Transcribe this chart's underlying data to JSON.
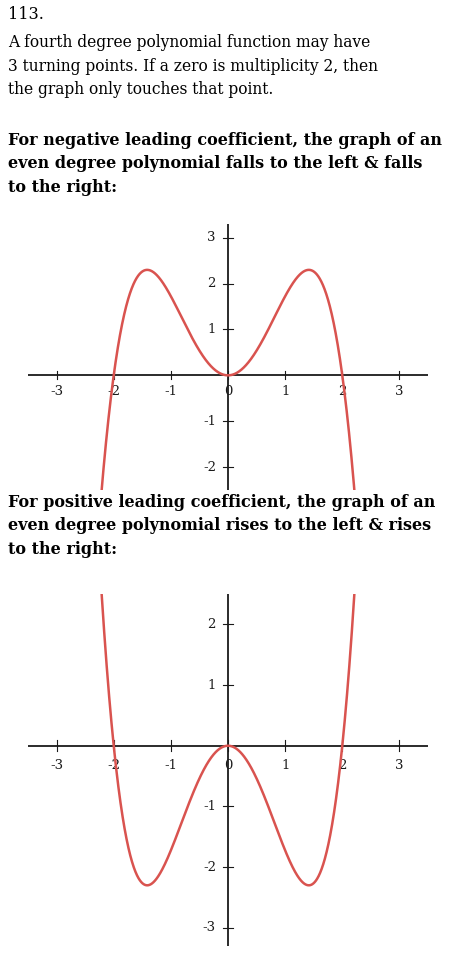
{
  "title_number": "113.",
  "description": "A fourth degree polynomial function may have\n3 turning points. If a zero is multiplicity 2, then\nthe graph only touches that point.",
  "label1": "For negative leading coefficient, the graph of an\neven degree polynomial falls to the left & falls\nto the right:",
  "label2": "For positive leading coefficient, the graph of an\neven degree polynomial rises to the left & rises\nto the right:",
  "curve_color": "#d9534f",
  "axis_color": "#1a1a1a",
  "text_color": "#000000",
  "bg_color": "#ffffff",
  "xlim": [
    -3.5,
    3.5
  ],
  "ylim1": [
    -2.5,
    3.3
  ],
  "ylim2": [
    -3.3,
    2.5
  ],
  "xticks": [
    -3,
    -2,
    -1,
    0,
    1,
    2,
    3
  ],
  "yticks1": [
    -2,
    -1,
    1,
    2,
    3
  ],
  "yticks2": [
    -3,
    -2,
    -1,
    1,
    2
  ],
  "font_size_tick": 9.5,
  "scale": 0.575
}
